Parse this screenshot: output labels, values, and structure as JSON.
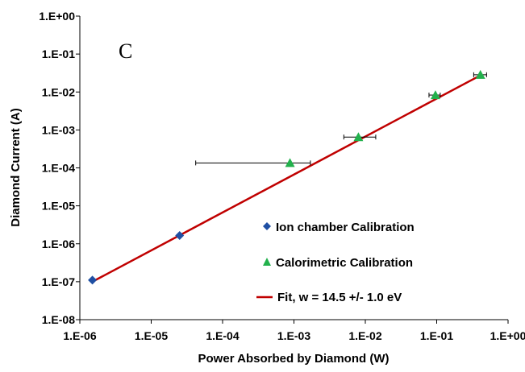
{
  "chart_data": {
    "type": "scatter",
    "xscale": "log",
    "yscale": "log",
    "xlim": [
      1e-06,
      1
    ],
    "ylim": [
      1e-08,
      1
    ],
    "panel_label": "C",
    "xlabel": "Power Absorbed by Diamond (W)",
    "ylabel": "Diamond Current (A)",
    "x_ticks": [
      1e-06,
      1e-05,
      0.0001,
      0.001,
      0.01,
      0.1,
      1
    ],
    "x_tick_labels": [
      "1.E-06",
      "1.E-05",
      "1.E-04",
      "1.E-03",
      "1.E-02",
      "1.E-01",
      "1.E+00"
    ],
    "y_ticks": [
      1e-08,
      1e-07,
      1e-06,
      1e-05,
      0.0001,
      0.001,
      0.01,
      0.1,
      1
    ],
    "y_tick_labels": [
      "1.E-08",
      "1.E-07",
      "1.E-06",
      "1.E-05",
      "1.E-04",
      "1.E-03",
      "1.E-02",
      "1.E-01",
      "1.E+00"
    ],
    "grid": false,
    "legend_position": "bottom-right",
    "series": [
      {
        "name": "Ion chamber Calibration",
        "marker": "diamond",
        "color": "#1f4fa3",
        "points": [
          {
            "x": 1.5e-06,
            "y": 1.1e-07
          },
          {
            "x": 2.5e-05,
            "y": 1.65e-06
          }
        ]
      },
      {
        "name": "Calorimetric Calibration",
        "marker": "triangle",
        "color": "#22b14c",
        "points": [
          {
            "x": 0.00088,
            "y": 0.000135,
            "xerr": [
              4.2e-05,
              0.0017
            ]
          },
          {
            "x": 0.008,
            "y": 0.00065,
            "xerr": [
              0.005,
              0.014
            ]
          },
          {
            "x": 0.096,
            "y": 0.0083,
            "xerr": [
              0.078,
              0.112
            ]
          },
          {
            "x": 0.41,
            "y": 0.0285,
            "xerr": [
              0.33,
              0.5
            ]
          }
        ]
      },
      {
        "name": "Fit, w = 14.5 +/- 1.0 eV",
        "type": "line",
        "color": "#c00000",
        "points": [
          {
            "x": 1.5e-06,
            "y": 1e-07
          },
          {
            "x": 0.41,
            "y": 0.0275
          }
        ]
      }
    ]
  }
}
